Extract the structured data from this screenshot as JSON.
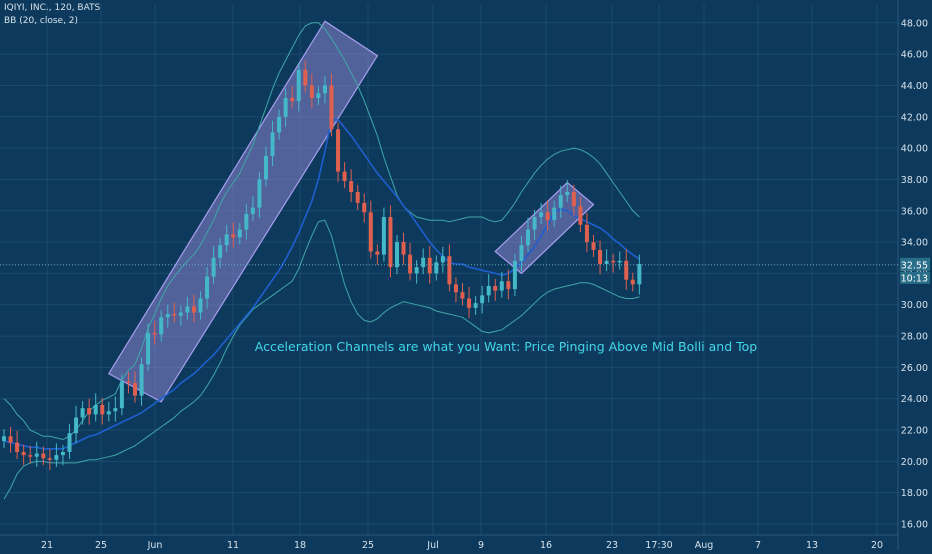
{
  "header": {
    "symbol_line": "IQIYI, INC., 120, BATS",
    "indicator_line": "BB (20, close, 2)"
  },
  "colors": {
    "background": "#0d3a5c",
    "up_candle": "#44b8c8",
    "down_candle": "#e06050",
    "bb_basis": "#1e5fd0",
    "bb_bands": "#3fa6a8",
    "channel_fill": "#8a84cf",
    "annotation_text": "#3ed6e6",
    "axis_text": "#d6e2ec",
    "grid": "#1c4a6c"
  },
  "chart_data": {
    "type": "candlestick",
    "title": "",
    "y_axis": {
      "side": "right",
      "ylim": [
        15.3,
        49.2
      ],
      "ticks": [
        "16.00",
        "18.00",
        "20.00",
        "22.00",
        "24.00",
        "26.00",
        "28.00",
        "30.00",
        "32.00",
        "34.00",
        "36.00",
        "38.00",
        "40.00",
        "42.00",
        "44.00",
        "46.00",
        "48.00"
      ]
    },
    "x_axis": {
      "ticks": [
        "21",
        "25",
        "Jun",
        "11",
        "18",
        "25",
        "Jul",
        "9",
        "16",
        "23",
        "17:30",
        "Aug",
        "7",
        "13",
        "20"
      ]
    },
    "grid": true,
    "price_labels": {
      "last": "32.55",
      "countdown": "10:13"
    },
    "last_price": 32.55,
    "annotation": "Acceleration Channels are what you Want: Price Pinging Above Mid Bolli and Top",
    "closes": [
      21.6,
      21.2,
      20.6,
      20.4,
      20.3,
      20.5,
      20.2,
      20.1,
      20.4,
      20.6,
      21.8,
      22.8,
      23.4,
      23.0,
      23.6,
      23.0,
      23.2,
      23.4,
      25.1,
      25.0,
      24.2,
      26.2,
      28.2,
      28.1,
      29.2,
      29.4,
      29.3,
      29.5,
      29.9,
      29.5,
      30.4,
      31.8,
      33.0,
      33.8,
      34.5,
      34.3,
      34.8,
      35.8,
      36.2,
      38.0,
      39.5,
      41.0,
      42.0,
      43.2,
      43.0,
      45.0,
      44.0,
      43.2,
      43.5,
      44.0,
      41.2,
      38.5,
      37.9,
      37.2,
      36.5,
      35.9,
      33.4,
      33.2,
      35.6,
      32.4,
      34.0,
      33.2,
      32.0,
      32.4,
      33.0,
      32.0,
      32.7,
      33.1,
      31.3,
      30.8,
      30.4,
      29.8,
      30.1,
      30.6,
      31.2,
      30.9,
      31.5,
      31.0,
      32.8,
      33.8,
      34.8,
      35.6,
      35.9,
      35.4,
      36.2,
      37.0,
      37.2,
      36.3,
      35.1,
      34.0,
      33.5,
      32.6,
      32.8,
      32.7,
      32.8,
      31.6,
      31.3,
      32.6
    ],
    "bb_basis": [
      21.3,
      21.2,
      21.1,
      21.0,
      20.9,
      20.9,
      20.8,
      20.8,
      20.8,
      20.8,
      21.0,
      21.2,
      21.4,
      21.6,
      21.7,
      21.9,
      22.1,
      22.3,
      22.5,
      22.7,
      22.9,
      23.1,
      23.4,
      23.7,
      24.0,
      24.3,
      24.6,
      25.0,
      25.3,
      25.6,
      26.0,
      26.4,
      26.8,
      27.3,
      27.8,
      28.3,
      28.8,
      29.3,
      29.8,
      30.4,
      31.0,
      31.6,
      32.2,
      32.9,
      33.7,
      34.6,
      35.6,
      36.6,
      38.0,
      39.8,
      41.8,
      41.8,
      41.3,
      40.8,
      40.2,
      39.6,
      39.0,
      38.4,
      37.9,
      37.4,
      36.9,
      36.3,
      35.8,
      35.2,
      34.6,
      34.0,
      33.5,
      33.1,
      32.7,
      32.6,
      32.6,
      32.4,
      32.3,
      32.2,
      32.1,
      32.0,
      31.9,
      32.0,
      32.3,
      32.7,
      33.2,
      33.7,
      34.4,
      35.1,
      35.9,
      36.1,
      36.0,
      35.7,
      35.5,
      35.3,
      35.1,
      34.9,
      34.6,
      34.2,
      33.9,
      33.5,
      33.2,
      32.9
    ],
    "bb_upper": [
      24.0,
      23.6,
      23.0,
      22.6,
      22.0,
      21.8,
      21.6,
      21.6,
      21.5,
      21.4,
      21.6,
      22.0,
      22.6,
      23.2,
      23.6,
      23.9,
      24.1,
      24.3,
      25.2,
      25.8,
      26.2,
      27.2,
      28.5,
      29.4,
      30.4,
      31.2,
      31.8,
      32.3,
      32.8,
      33.2,
      33.8,
      34.6,
      35.4,
      36.4,
      37.2,
      37.8,
      38.4,
      39.3,
      40.2,
      41.4,
      42.6,
      43.8,
      44.8,
      45.6,
      46.4,
      47.2,
      47.8,
      48.0,
      48.0,
      47.6,
      47.0,
      46.3,
      45.6,
      44.8,
      44.0,
      43.0,
      41.9,
      40.8,
      39.4,
      38.2,
      37.0,
      36.3,
      35.9,
      35.6,
      35.5,
      35.4,
      35.4,
      35.4,
      35.3,
      35.4,
      35.5,
      35.6,
      35.6,
      35.6,
      35.4,
      35.3,
      35.4,
      35.9,
      36.5,
      37.2,
      37.8,
      38.4,
      38.9,
      39.3,
      39.6,
      39.8,
      39.9,
      40.0,
      39.9,
      39.7,
      39.4,
      39.0,
      38.4,
      37.8,
      37.2,
      36.6,
      36.0,
      35.6
    ],
    "bb_lower": [
      17.6,
      18.3,
      19.2,
      19.7,
      19.9,
      20.0,
      20.0,
      19.9,
      19.9,
      19.9,
      19.9,
      19.9,
      20.0,
      20.1,
      20.1,
      20.2,
      20.3,
      20.4,
      20.6,
      20.8,
      21.0,
      21.3,
      21.6,
      21.9,
      22.2,
      22.5,
      22.8,
      23.2,
      23.5,
      23.8,
      24.2,
      24.8,
      25.5,
      26.3,
      27.2,
      28.0,
      28.7,
      29.2,
      29.7,
      30.0,
      30.3,
      30.6,
      30.9,
      31.2,
      31.5,
      32.3,
      33.4,
      34.4,
      35.3,
      35.4,
      34.4,
      32.8,
      31.3,
      30.2,
      29.4,
      29.0,
      28.9,
      29.1,
      29.5,
      29.8,
      30.0,
      30.2,
      30.1,
      30.0,
      29.9,
      29.8,
      29.6,
      29.5,
      29.4,
      29.3,
      29.2,
      28.9,
      28.6,
      28.3,
      28.2,
      28.3,
      28.4,
      28.7,
      29.0,
      29.3,
      29.7,
      30.1,
      30.5,
      30.8,
      31.0,
      31.1,
      31.2,
      31.3,
      31.4,
      31.4,
      31.3,
      31.1,
      30.9,
      30.7,
      30.5,
      30.4,
      30.4,
      30.5
    ],
    "channels": [
      {
        "name": "channel-1",
        "price_corners": [
          [
            25.6,
            0
          ],
          [
            48.1,
            0
          ],
          [
            45.9,
            0
          ],
          [
            23.8,
            0
          ]
        ]
      },
      {
        "name": "channel-2",
        "price_corners": [
          [
            33.4,
            0
          ],
          [
            37.8,
            0
          ],
          [
            36.4,
            0
          ],
          [
            32.0,
            0
          ]
        ]
      }
    ]
  }
}
